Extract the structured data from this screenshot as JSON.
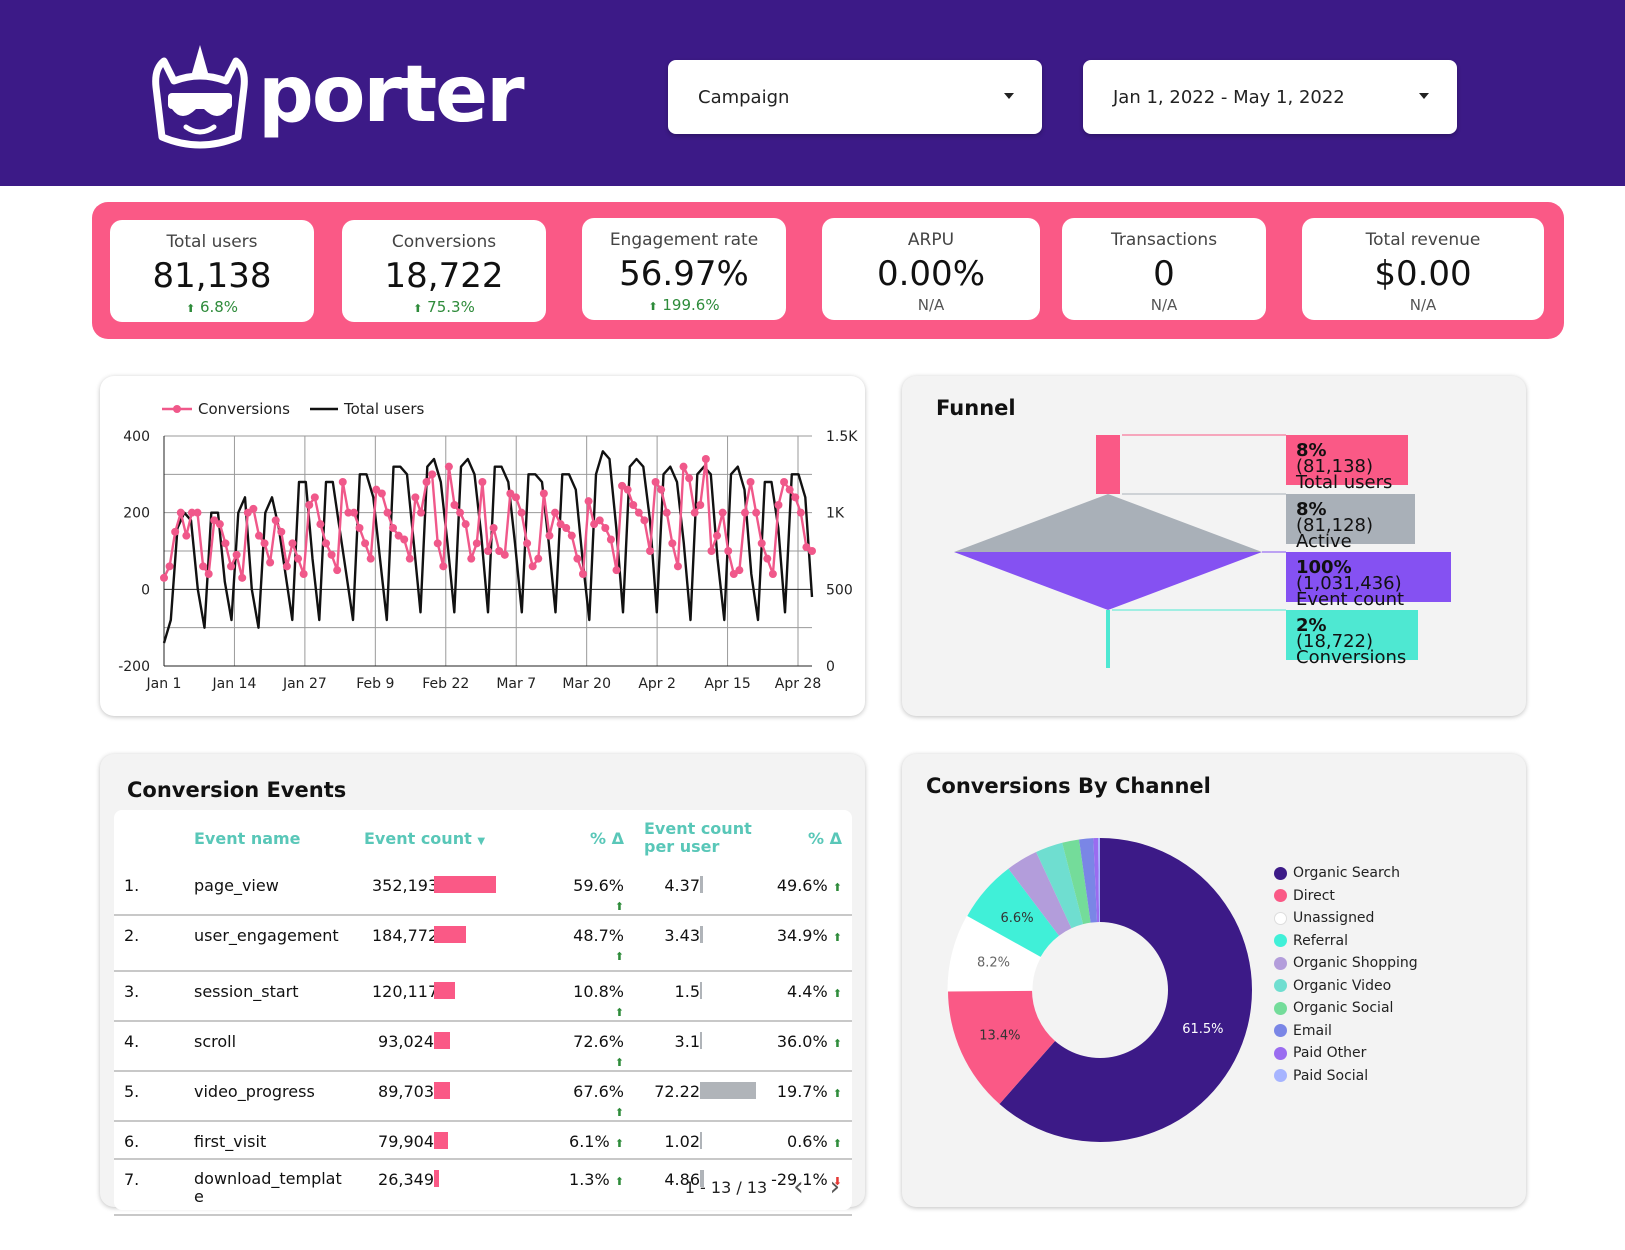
{
  "header": {
    "brand": "porter",
    "filters": [
      {
        "label": "Campaign"
      },
      {
        "label": "Jan 1, 2022 - May 1, 2022"
      }
    ]
  },
  "kpis": [
    {
      "label": "Total users",
      "value": "81,138",
      "delta": "6.8%",
      "trend": "up"
    },
    {
      "label": "Conversions",
      "value": "18,722",
      "delta": "75.3%",
      "trend": "up"
    },
    {
      "label": "Engagement rate",
      "value": "56.97%",
      "delta": "199.6%",
      "trend": "up"
    },
    {
      "label": "ARPU",
      "value": "0.00%",
      "delta": "N/A",
      "trend": "none"
    },
    {
      "label": "Transactions",
      "value": "0",
      "delta": "N/A",
      "trend": "none"
    },
    {
      "label": "Total revenue",
      "value": "$0.00",
      "delta": "N/A",
      "trend": "none"
    }
  ],
  "colors": {
    "brand": "#3c1a87",
    "accent": "#fa5986",
    "teal": "#59c7b8"
  },
  "chart_data": {
    "type": "line",
    "title": "",
    "legend": [
      "Conversions",
      "Total users"
    ],
    "x_ticks": [
      "Jan 1",
      "Jan 14",
      "Jan 27",
      "Feb 9",
      "Feb 22",
      "Mar 7",
      "Mar 20",
      "Apr 2",
      "Apr 15",
      "Apr 28"
    ],
    "y_left_ticks": [
      "400",
      "200",
      "0",
      "-200"
    ],
    "y_right_ticks": [
      "1.5K",
      "1K",
      "500",
      "0"
    ],
    "y_left_range": [
      -200,
      400
    ],
    "y_right_range": [
      0,
      1500
    ],
    "series": [
      {
        "name": "Conversions",
        "axis": "left",
        "color": "#f0588a",
        "values": [
          30,
          60,
          150,
          200,
          140,
          200,
          200,
          60,
          40,
          180,
          170,
          120,
          60,
          90,
          30,
          200,
          210,
          140,
          120,
          70,
          180,
          150,
          60,
          120,
          80,
          40,
          220,
          240,
          170,
          120,
          90,
          50,
          280,
          200,
          200,
          160,
          120,
          80,
          260,
          250,
          200,
          160,
          140,
          130,
          80,
          240,
          200,
          280,
          300,
          120,
          60,
          320,
          220,
          200,
          170,
          80,
          120,
          280,
          100,
          160,
          100,
          90,
          250,
          240,
          200,
          120,
          60,
          80,
          250,
          140,
          200,
          170,
          160,
          140,
          80,
          40,
          230,
          170,
          180,
          160,
          130,
          50,
          270,
          260,
          220,
          200,
          180,
          100,
          280,
          260,
          200,
          120,
          60,
          320,
          290,
          200,
          220,
          340,
          100,
          140,
          200,
          100,
          40,
          50,
          200,
          280,
          200,
          120,
          80,
          40,
          220,
          280,
          260,
          240,
          200,
          110,
          100
        ]
      },
      {
        "name": "Total users",
        "axis": "right",
        "color": "#111111",
        "values": [
          150,
          300,
          900,
          1000,
          950,
          500,
          250,
          1000,
          1000,
          550,
          300,
          1000,
          1100,
          500,
          250,
          1000,
          1100,
          900,
          600,
          300,
          1200,
          1200,
          700,
          300,
          1200,
          1200,
          900,
          600,
          300,
          1250,
          1250,
          1100,
          700,
          300,
          1300,
          1300,
          1250,
          800,
          350,
          1300,
          1350,
          1200,
          800,
          350,
          1300,
          1350,
          1250,
          850,
          350,
          1300,
          1300,
          1200,
          800,
          350,
          1250,
          1250,
          1200,
          800,
          350,
          1250,
          1250,
          1150,
          700,
          300,
          1250,
          1400,
          1350,
          900,
          350,
          1300,
          1350,
          1300,
          950,
          350,
          1250,
          1300,
          1200,
          800,
          300,
          1250,
          1300,
          1250,
          700,
          300,
          1250,
          1300,
          1150,
          600,
          300,
          1200,
          1200,
          900,
          350,
          1250,
          1250,
          1100,
          450
        ]
      }
    ]
  },
  "funnel": {
    "title": "Funnel",
    "stages": [
      {
        "pct": "8%",
        "count": "(81,138)",
        "name": "Total users",
        "color": "#fa5986"
      },
      {
        "pct": "8%",
        "count": "(81,128)",
        "name": "Active users",
        "color": "#a9b0b8"
      },
      {
        "pct": "100%",
        "count": "(1,031,436)",
        "name": "Event count",
        "color": "#8551f2"
      },
      {
        "pct": "2%",
        "count": "(18,722)",
        "name": "Conversions",
        "color": "#4ee8d2"
      }
    ]
  },
  "events_table": {
    "title": "Conversion Events",
    "headers": {
      "name": "Event name",
      "count": "Event count",
      "delta1": "% Δ",
      "per_user": "Event count per user",
      "delta2": "% Δ"
    },
    "rows": [
      {
        "idx": "1.",
        "name": "page_view",
        "count": "352,193",
        "bar": 1.0,
        "d1": "59.6%",
        "d1trend": "up",
        "per": "4.37",
        "perbar": 0.06,
        "d2": "49.6%",
        "d2trend": "up"
      },
      {
        "idx": "2.",
        "name": "user_engagement",
        "count": "184,772",
        "bar": 0.52,
        "d1": "48.7%",
        "d1trend": "up",
        "per": "3.43",
        "perbar": 0.047,
        "d2": "34.9%",
        "d2trend": "up"
      },
      {
        "idx": "3.",
        "name": "session_start",
        "count": "120,117",
        "bar": 0.34,
        "d1": "10.8%",
        "d1trend": "up",
        "per": "1.5",
        "perbar": 0.021,
        "d2": "4.4%",
        "d2trend": "up"
      },
      {
        "idx": "4.",
        "name": "scroll",
        "count": "93,024",
        "bar": 0.26,
        "d1": "72.6%",
        "d1trend": "up",
        "per": "3.1",
        "perbar": 0.043,
        "d2": "36.0%",
        "d2trend": "up"
      },
      {
        "idx": "5.",
        "name": "video_progress",
        "count": "89,703",
        "bar": 0.25,
        "d1": "67.6%",
        "d1trend": "up",
        "per": "72.22",
        "perbar": 1.0,
        "d2": "19.7%",
        "d2trend": "up"
      },
      {
        "idx": "6.",
        "name": "first_visit",
        "count": "79,904",
        "bar": 0.23,
        "d1": "6.1%",
        "d1trend": "up",
        "per": "1.02",
        "perbar": 0.014,
        "d2": "0.6%",
        "d2trend": "up"
      },
      {
        "idx": "7.",
        "name": "download_template",
        "count": "26,349",
        "bar": 0.075,
        "d1": "1.3%",
        "d1trend": "up",
        "per": "4.86",
        "perbar": 0.067,
        "d2": "-29.1%",
        "d2trend": "down"
      }
    ],
    "pager": "1 - 13 / 13"
  },
  "channels": {
    "title": "Conversions By Channel",
    "chart_data": {
      "type": "pie",
      "labels": [
        "Organic Search",
        "Direct",
        "Unassigned",
        "Referral",
        "Organic Shopping",
        "Organic Video",
        "Organic Social",
        "Email",
        "Paid Other",
        "Paid Social"
      ],
      "values": [
        61.5,
        13.4,
        8.2,
        6.6,
        3.4,
        2.9,
        1.8,
        1.5,
        0.5,
        0.2
      ],
      "slice_labels": [
        "61.5%",
        "13.4%",
        "8.2%",
        "6.6%",
        "",
        "",
        "",
        "",
        "",
        ""
      ],
      "colors": [
        "#3c1a87",
        "#fa5986",
        "#ffffff",
        "#40f0d8",
        "#b39ddb",
        "#6fded0",
        "#74dc9a",
        "#7a86e6",
        "#9a6cf0",
        "#a6b4ff"
      ]
    }
  }
}
